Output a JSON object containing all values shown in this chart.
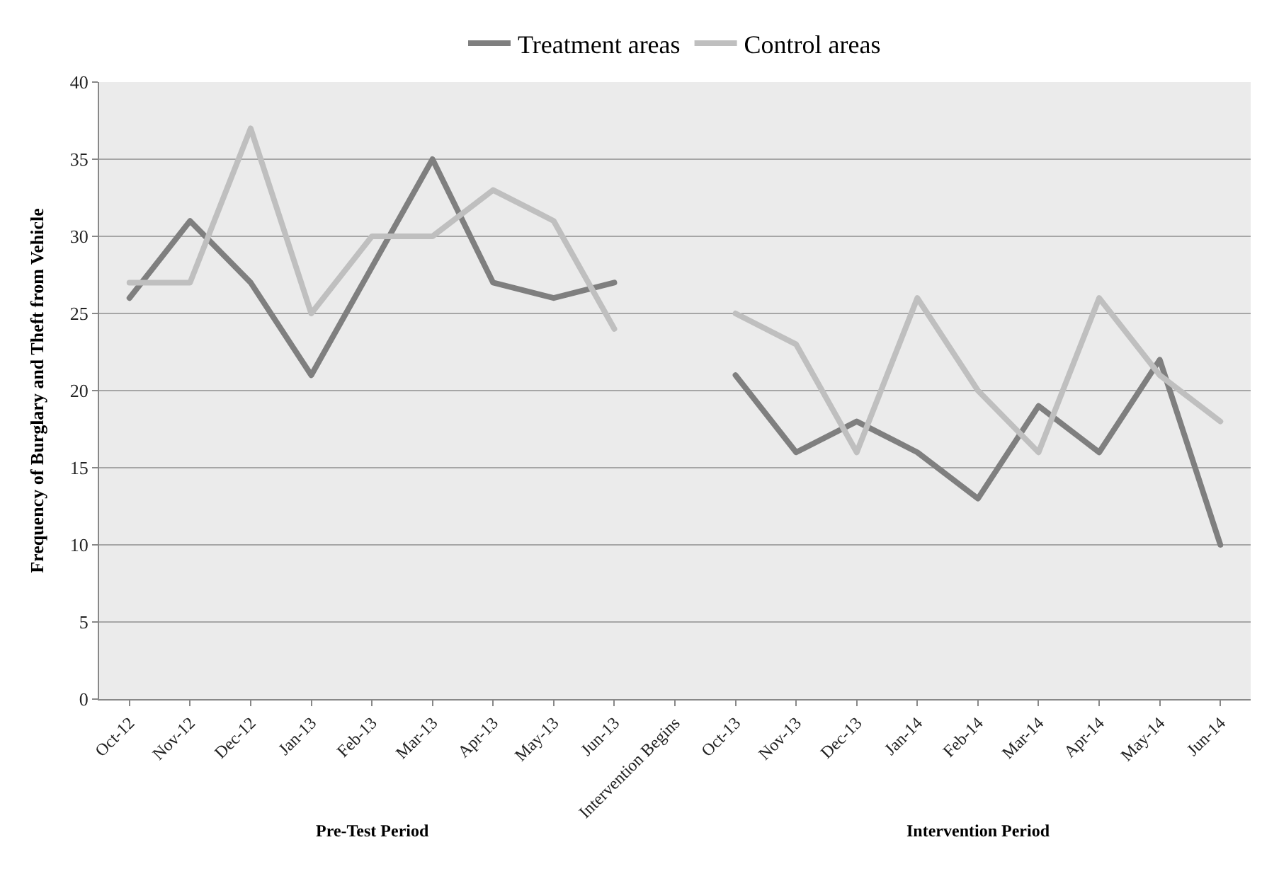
{
  "chart_data": {
    "type": "line",
    "ylabel": "Frequency of Burglary and Theft from Vehicle",
    "categories": [
      "Oct-12",
      "Nov-12",
      "Dec-12",
      "Jan-13",
      "Feb-13",
      "Mar-13",
      "Apr-13",
      "May-13",
      "Jun-13",
      "Intervention Begins",
      "Oct-13",
      "Nov-13",
      "Dec-13",
      "Jan-14",
      "Feb-14",
      "Mar-14",
      "Apr-14",
      "May-14",
      "Jun-14"
    ],
    "series": [
      {
        "name": "Treatment areas",
        "color": "#7f7f7f",
        "values": [
          26,
          31,
          27,
          21,
          28,
          35,
          27,
          26,
          27,
          null,
          21,
          16,
          18,
          16,
          13,
          19,
          16,
          22,
          10
        ]
      },
      {
        "name": "Control areas",
        "color": "#bfbfbf",
        "values": [
          27,
          27,
          37,
          25,
          30,
          30,
          33,
          31,
          24,
          null,
          25,
          23,
          16,
          26,
          20,
          16,
          26,
          21,
          18
        ]
      }
    ],
    "annotations": [
      "Pre-Test Period",
      "Intervention Period"
    ],
    "ylim": [
      0,
      40
    ],
    "yticks": [
      0,
      5,
      10,
      15,
      20,
      25,
      30,
      35,
      40
    ],
    "grid": "y",
    "legend": "top",
    "marker": "none",
    "line_style": "solid"
  }
}
